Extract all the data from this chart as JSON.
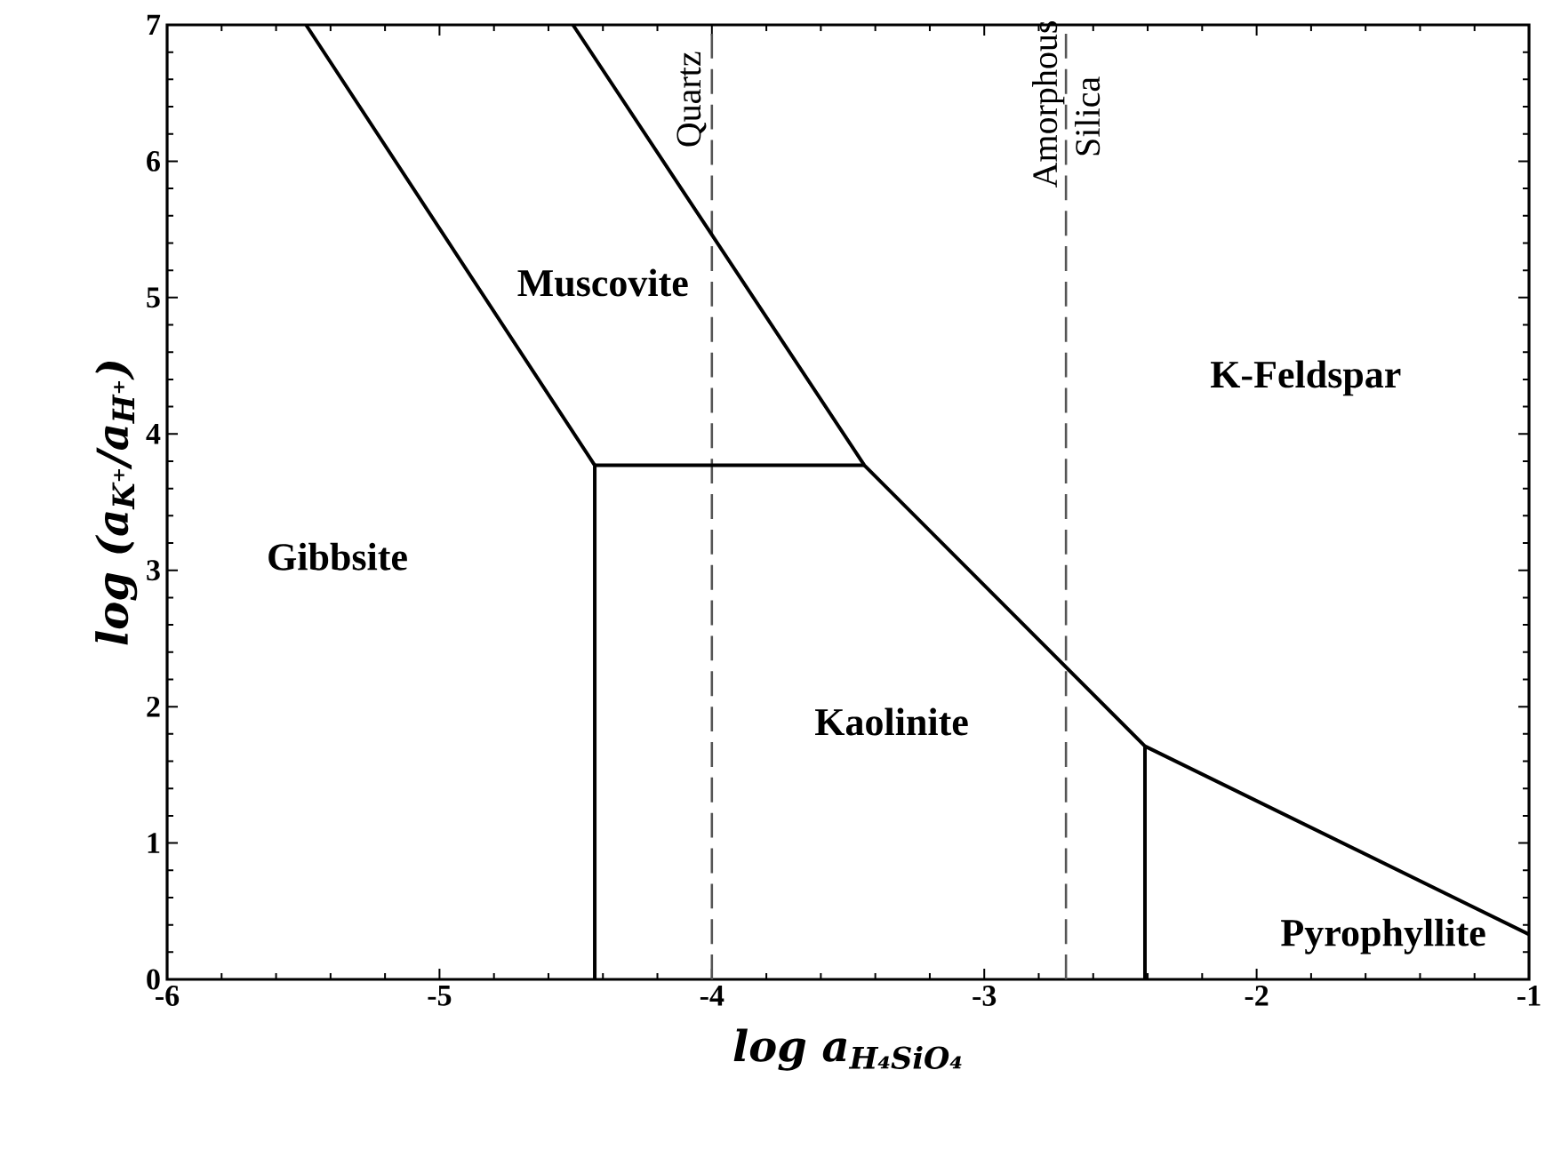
{
  "chart_data": {
    "type": "line",
    "xlabel": "log a$_{H₄SiO₄}$",
    "ylabel": "log (a$_{K⁺}$/a$_{H⁺}$)",
    "xlim": [
      -6,
      -1
    ],
    "ylim": [
      0,
      7
    ],
    "xticks": [
      -6,
      -5,
      -4,
      -3,
      -2,
      -1
    ],
    "yticks": [
      0,
      1,
      2,
      3,
      4,
      5,
      6,
      7
    ],
    "grid": false,
    "line_style": "solid",
    "series": [
      {
        "color": "#000000",
        "x": [
          -5.49,
          -4.43,
          -4.43
        ],
        "values": [
          7,
          3.77,
          0
        ]
      },
      {
        "color": "#000000",
        "x": [
          -4.51,
          -3.44,
          -2.41,
          -1
        ],
        "values": [
          7,
          3.77,
          1.71,
          0.33
        ]
      },
      {
        "color": "#000000",
        "x": [
          -4.43,
          -3.44
        ],
        "values": [
          3.77,
          3.77
        ]
      },
      {
        "color": "#000000",
        "x": [
          -2.41,
          -2.41
        ],
        "values": [
          0,
          1.71
        ]
      }
    ],
    "ref_lines": [
      {
        "axis": "x",
        "value": -4,
        "label": "Quartz",
        "color": "#555555",
        "line_style": "dashed"
      },
      {
        "axis": "x",
        "value": -2.7,
        "label": "Amorphous Silica",
        "color": "#555555",
        "line_style": "dashed"
      }
    ],
    "annotations": [
      "Gibbsite",
      "Muscovite",
      "K-Feldspar",
      "Kaolinite",
      "Pyrophyllite"
    ]
  }
}
